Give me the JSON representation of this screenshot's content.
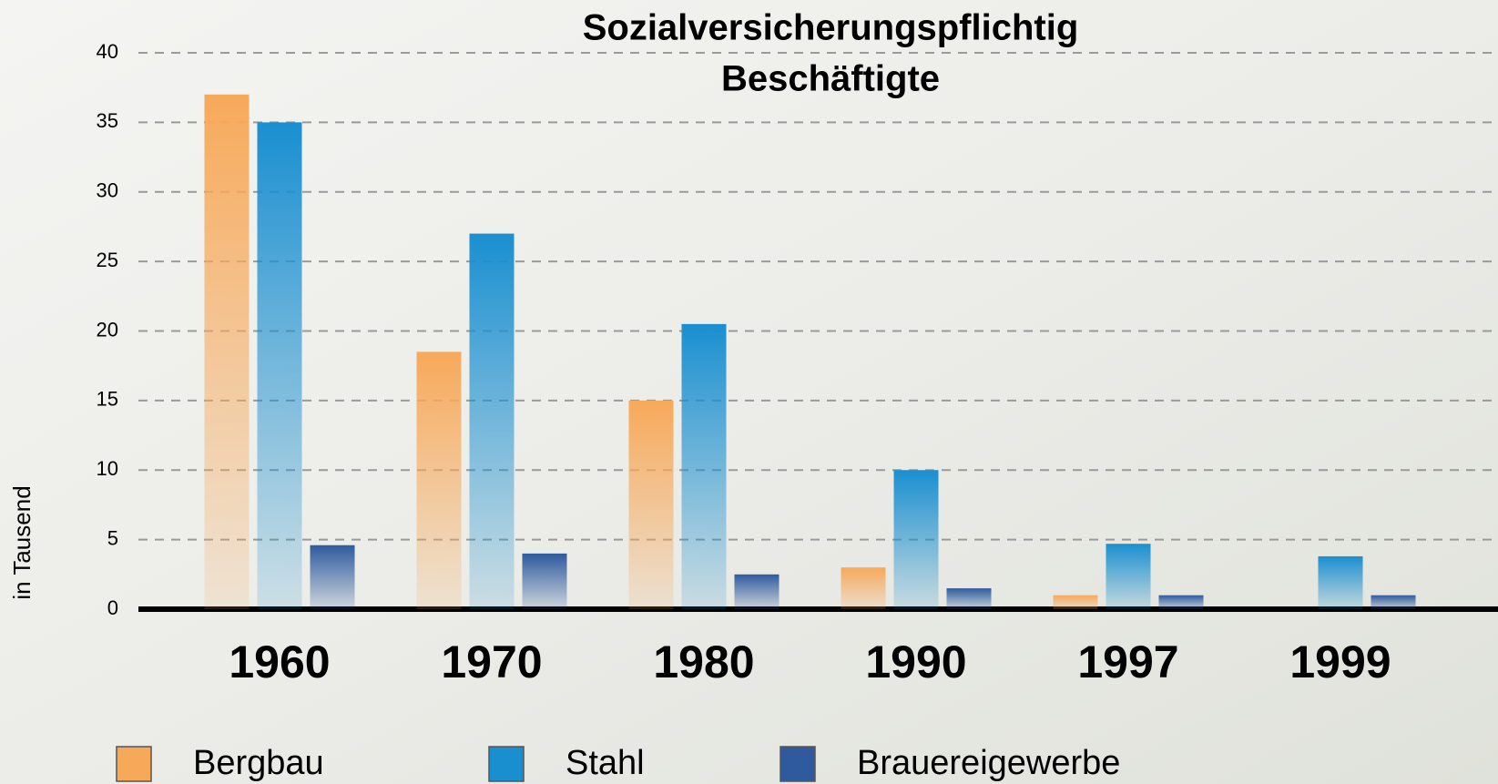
{
  "chart_data": {
    "type": "bar",
    "title": [
      "Sozialversicherungspflichtig",
      "Beschäftigte"
    ],
    "y_label": "in Tausend",
    "categories": [
      "1960",
      "1970",
      "1980",
      "1990",
      "1997",
      "1999"
    ],
    "series": [
      {
        "name": "Bergbau",
        "color": "#f7a95a",
        "values": [
          37,
          18.5,
          15,
          3,
          1,
          0
        ]
      },
      {
        "name": "Stahl",
        "color": "#1a8fd0",
        "values": [
          35,
          27,
          20.5,
          10,
          4.7,
          3.8
        ]
      },
      {
        "name": "Brauereigewerbe",
        "color": "#2f5b9e",
        "values": [
          4.6,
          4,
          2.5,
          1.5,
          1,
          1
        ]
      }
    ],
    "ylim": [
      0,
      40
    ],
    "yticks": [
      0,
      5,
      10,
      15,
      20,
      25,
      30,
      35,
      40
    ],
    "grid": true
  }
}
